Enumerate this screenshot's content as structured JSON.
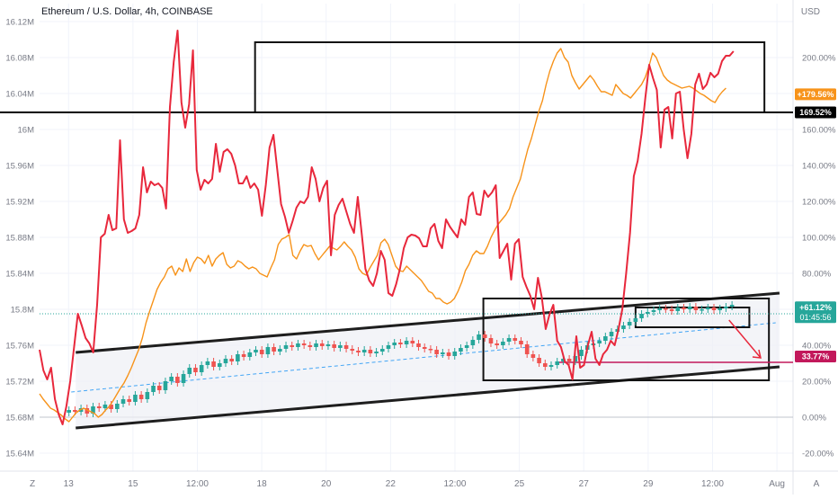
{
  "header": {
    "title": "Ethereum / U.S. Dollar, 4h, COINBASE"
  },
  "chart_data": {
    "type": "line",
    "left_axis": {
      "ticks": [
        "16.12M",
        "16.08M",
        "16.04M",
        "16M",
        "15.96M",
        "15.92M",
        "15.88M",
        "15.84M",
        "15.8M",
        "15.76M",
        "15.72M",
        "15.68M",
        "15.64M"
      ],
      "range": [
        15.62,
        16.14
      ]
    },
    "right_axis": {
      "unit": "USD",
      "ticks": [
        "200.00%",
        "180.00%",
        "160.00%",
        "140.00%",
        "120.00%",
        "100.00%",
        "80.00%",
        "60.00%",
        "40.00%",
        "20.00%",
        "0.00%",
        "-20.00%"
      ],
      "range": [
        -30,
        230
      ]
    },
    "x_axis": {
      "ticks": [
        "13",
        "15",
        "12:00",
        "18",
        "20",
        "22",
        "12:00",
        "25",
        "27",
        "29",
        "12:00",
        "Aug"
      ]
    },
    "right_badges": [
      {
        "value": "+179.56%",
        "pct": 179.56,
        "color": "#f7931a"
      },
      {
        "value": "169.52%",
        "pct": 169.52,
        "color": "#000000"
      },
      {
        "value": "+61.12%",
        "subvalue": "01:45:56",
        "pct": 61.12,
        "color": "#26a69a"
      },
      {
        "value": "33.77%",
        "pct": 33.77,
        "color": "#c2185b"
      }
    ],
    "series": [
      {
        "color": "#e8283c",
        "axis": "left",
        "values": [
          15.755,
          15.732,
          15.722,
          15.735,
          15.7,
          15.683,
          15.672,
          15.692,
          15.72,
          15.758,
          15.795,
          15.782,
          15.768,
          15.762,
          15.752,
          15.805,
          15.88,
          15.884,
          15.905,
          15.888,
          15.89,
          15.988,
          15.9,
          15.885,
          15.887,
          15.89,
          15.905,
          15.958,
          15.93,
          15.942,
          15.938,
          15.94,
          15.935,
          15.912,
          16.025,
          16.075,
          16.11,
          16.03,
          16.002,
          16.028,
          16.088,
          15.955,
          15.933,
          15.944,
          15.94,
          15.945,
          15.984,
          15.953,
          15.975,
          15.978,
          15.973,
          15.96,
          15.94,
          15.94,
          15.948,
          15.935,
          15.94,
          15.933,
          15.904,
          15.938,
          15.98,
          15.994,
          15.955,
          15.917,
          15.903,
          15.885,
          15.898,
          15.913,
          15.92,
          15.918,
          15.925,
          15.958,
          15.945,
          15.92,
          15.935,
          15.943,
          15.86,
          15.905,
          15.916,
          15.923,
          15.909,
          15.895,
          15.885,
          15.925,
          15.885,
          15.845,
          15.832,
          15.826,
          15.84,
          15.865,
          15.855,
          15.818,
          15.815,
          15.828,
          15.845,
          15.868,
          15.88,
          15.883,
          15.882,
          15.879,
          15.87,
          15.87,
          15.89,
          15.895,
          15.876,
          15.868,
          15.9,
          15.892,
          15.886,
          15.88,
          15.9,
          15.894,
          15.925,
          15.93,
          15.906,
          15.905,
          15.932,
          15.925,
          15.93,
          15.938,
          15.857,
          15.865,
          15.873,
          15.833,
          15.873,
          15.878,
          15.836,
          15.825,
          15.815,
          15.8,
          15.835,
          15.813,
          15.778,
          15.794,
          15.805,
          15.765,
          15.758,
          15.742,
          15.738,
          15.722,
          15.77,
          15.735,
          15.738,
          15.76,
          15.775,
          15.745,
          15.738,
          15.75,
          15.755,
          15.765,
          15.76,
          15.778,
          15.8,
          15.84,
          15.885,
          15.948,
          15.965,
          15.995,
          16.035,
          16.072,
          16.057,
          16.044,
          15.98,
          16.022,
          16.025,
          15.99,
          16.04,
          16.042,
          16.0,
          15.968,
          15.995,
          16.05,
          16.062,
          16.045,
          16.05,
          16.063,
          16.058,
          16.062,
          16.076,
          16.082,
          16.082,
          16.087
        ]
      },
      {
        "color": "#f7931a",
        "axis": "left",
        "values": [
          15.706,
          15.7,
          15.695,
          15.69,
          15.688,
          15.685,
          15.682,
          15.678,
          15.675,
          15.68,
          15.685,
          15.688,
          15.69,
          15.688,
          15.686,
          15.684,
          15.68,
          15.683,
          15.688,
          15.692,
          15.698,
          15.705,
          15.712,
          15.718,
          15.726,
          15.735,
          15.745,
          15.755,
          15.768,
          15.785,
          15.798,
          15.81,
          15.822,
          15.83,
          15.836,
          15.845,
          15.848,
          15.838,
          15.846,
          15.842,
          15.856,
          15.842,
          15.852,
          15.858,
          15.856,
          15.851,
          15.86,
          15.848,
          15.856,
          15.86,
          15.863,
          15.85,
          15.846,
          15.848,
          15.854,
          15.852,
          15.848,
          15.845,
          15.847,
          15.845,
          15.84,
          15.838,
          15.836,
          15.846,
          15.855,
          15.872,
          15.878,
          15.88,
          15.883,
          15.86,
          15.856,
          15.865,
          15.872,
          15.87,
          15.871,
          15.862,
          15.855,
          15.86,
          15.865,
          15.87,
          15.868,
          15.866,
          15.87,
          15.875,
          15.87,
          15.866,
          15.858,
          15.845,
          15.84,
          15.838,
          15.846,
          15.853,
          15.86,
          15.874,
          15.878,
          15.872,
          15.86,
          15.848,
          15.843,
          15.842,
          15.848,
          15.844,
          15.84,
          15.836,
          15.832,
          15.826,
          15.82,
          15.818,
          15.812,
          15.812,
          15.808,
          15.806,
          15.808,
          15.812,
          15.82,
          15.83,
          15.843,
          15.85,
          15.86,
          15.865,
          15.862,
          15.862,
          15.87,
          15.88,
          15.888,
          15.895,
          15.9,
          15.905,
          15.912,
          15.925,
          15.935,
          15.945,
          15.962,
          15.978,
          15.99,
          16.005,
          16.02,
          16.032,
          16.05,
          16.065,
          16.076,
          16.085,
          16.09,
          16.08,
          16.075,
          16.06,
          16.052,
          16.045,
          16.05,
          16.055,
          16.06,
          16.055,
          16.048,
          16.042,
          16.042,
          16.04,
          16.038,
          16.05,
          16.045,
          16.04,
          16.038,
          16.035,
          16.04,
          16.045,
          16.05,
          16.058,
          16.07,
          16.085,
          16.08,
          16.07,
          16.06,
          16.055,
          16.052,
          16.05,
          16.048,
          16.046,
          16.047,
          16.048,
          16.046,
          16.043,
          16.04,
          16.038,
          16.035,
          16.032,
          16.03,
          16.037,
          16.042,
          16.046
        ]
      },
      {
        "color": "#26a69a",
        "down_color": "#ef5350",
        "type": "candles",
        "axis": "left",
        "values": [
          15.688,
          15.686,
          15.69,
          15.684,
          15.692,
          15.69,
          15.694,
          15.689,
          15.695,
          15.7,
          15.697,
          15.705,
          15.7,
          15.708,
          15.715,
          15.71,
          15.72,
          15.725,
          15.718,
          15.728,
          15.735,
          15.73,
          15.738,
          15.742,
          15.736,
          15.74,
          15.745,
          15.742,
          15.75,
          15.747,
          15.752,
          15.755,
          15.75,
          15.758,
          15.753,
          15.756,
          15.76,
          15.758,
          15.762,
          15.76,
          15.758,
          15.762,
          15.759,
          15.761,
          15.757,
          15.76,
          15.756,
          15.754,
          15.752,
          15.755,
          15.751,
          15.753,
          15.756,
          15.76,
          15.763,
          15.761,
          15.765,
          15.762,
          15.758,
          15.756,
          15.755,
          15.75,
          15.752,
          15.748,
          15.753,
          15.757,
          15.76,
          15.766,
          15.772,
          15.768,
          15.762,
          15.76,
          15.764,
          15.768,
          15.765,
          15.761,
          15.75,
          15.746,
          15.74,
          15.736,
          15.738,
          15.742,
          15.745,
          15.742,
          15.748,
          15.755,
          15.76,
          15.762,
          15.765,
          15.77,
          15.775,
          15.778,
          15.782,
          15.786,
          15.79,
          15.795,
          15.797,
          15.799,
          15.801,
          15.8,
          15.798,
          15.802,
          15.8,
          15.803,
          15.799,
          15.8,
          15.802,
          15.799,
          15.801,
          15.803,
          15.805
        ]
      }
    ],
    "channel_upper": [
      15.752,
      15.818
    ],
    "channel_lower": [
      15.668,
      15.736
    ],
    "channel_mid": [
      15.708,
      15.785
    ],
    "horizontal_levels": [
      {
        "value": 16.019,
        "color": "#000000"
      },
      {
        "value": 15.795,
        "color": "#26a69a"
      },
      {
        "value": 15.741,
        "color": "#c2185b"
      }
    ],
    "boxes": [
      {
        "label": "top-box",
        "x0": 0.286,
        "x1": 0.962,
        "y0": 16.019,
        "y1": 16.097
      },
      {
        "label": "mid-box",
        "x0": 0.589,
        "x1": 0.968,
        "y0": 15.721,
        "y1": 15.812
      },
      {
        "label": "small-box",
        "x0": 0.791,
        "x1": 0.942,
        "y0": 15.78,
        "y1": 15.802
      }
    ],
    "grid": true
  }
}
